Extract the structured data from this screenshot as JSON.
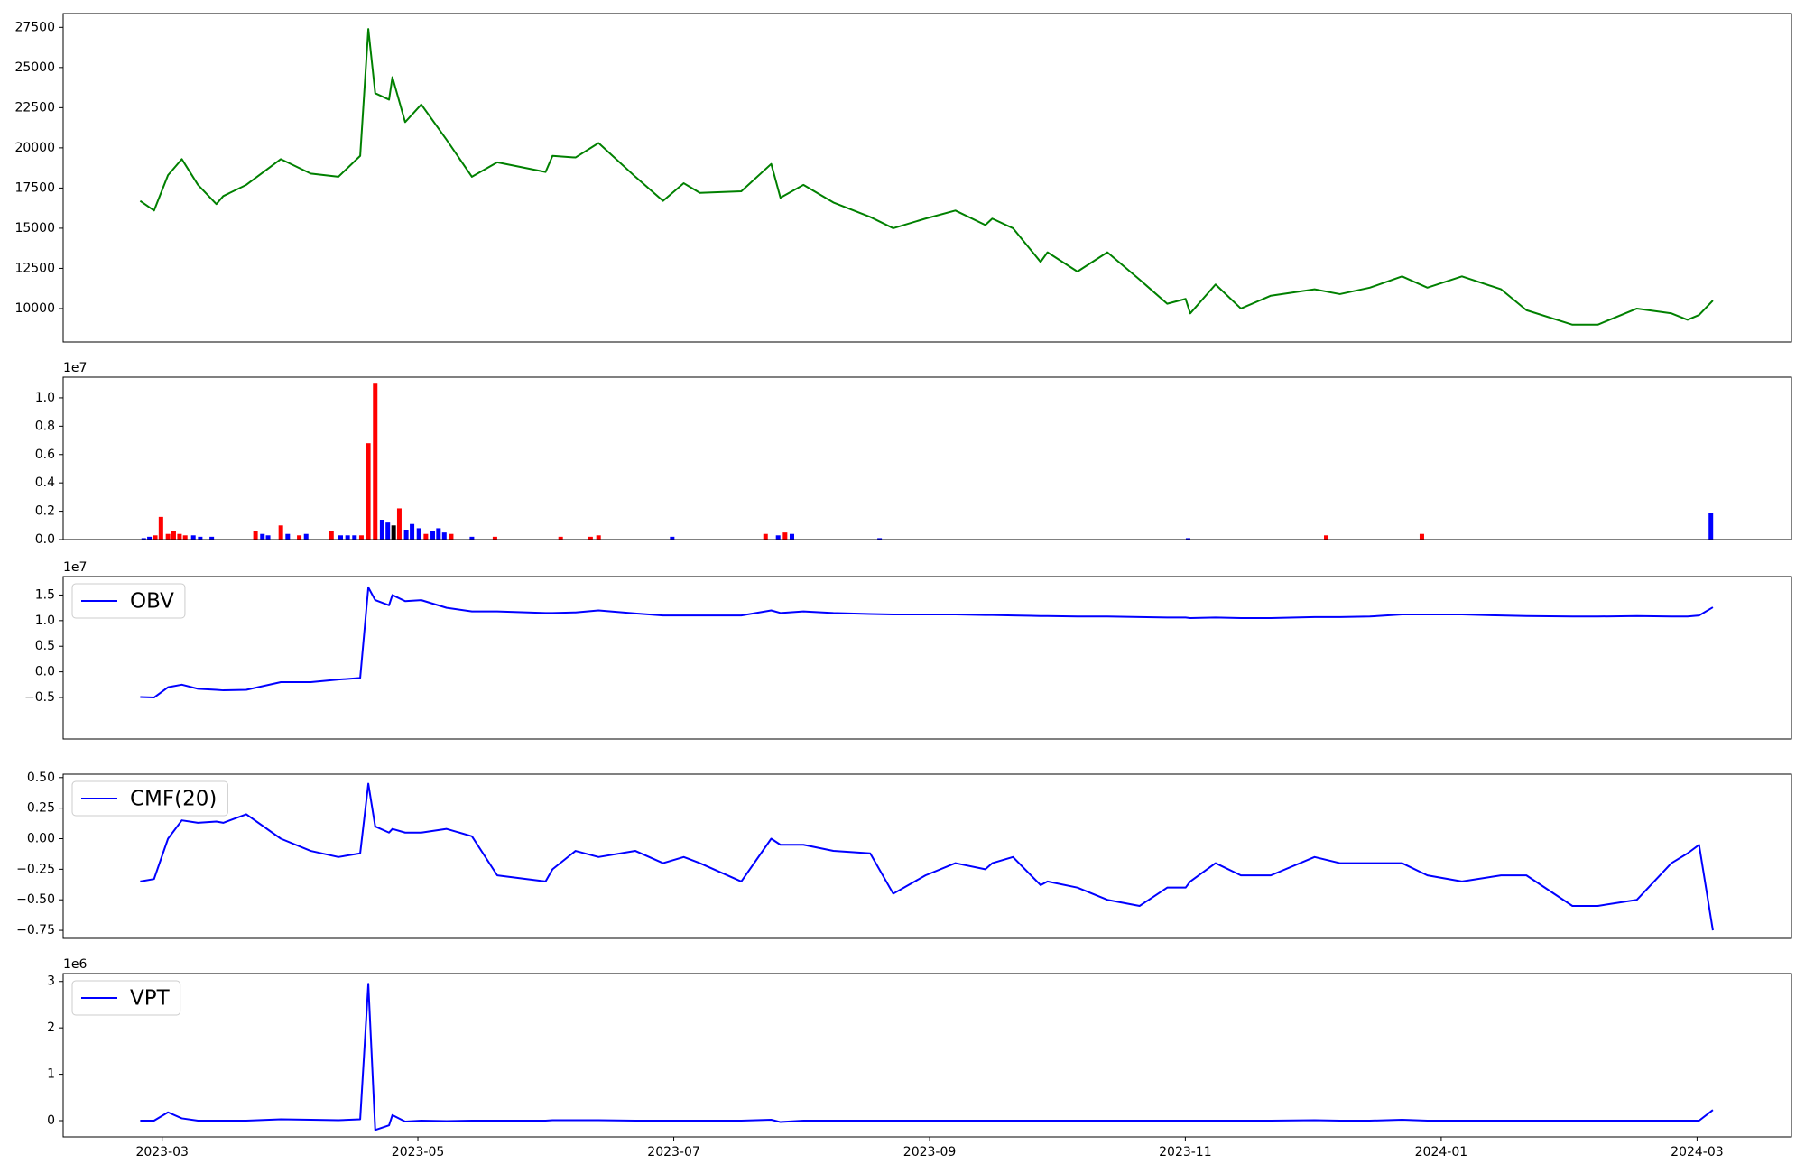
{
  "chart_data": [
    {
      "type": "line",
      "x": [
        2023.1524,
        2023.1614,
        2023.1705,
        2023.1795,
        2023.19,
        2023.202,
        2023.2065,
        2023.2215,
        2023.244,
        2023.2635,
        2023.2815,
        2023.2957,
        2023.301,
        2023.3055,
        2023.3145,
        2023.3167,
        2023.325,
        2023.3355,
        2023.352,
        2023.3685,
        2023.385,
        2023.4165,
        2023.421,
        2023.436,
        2023.451,
        2023.475,
        2023.493,
        2023.5065,
        2023.517,
        2023.544,
        2023.5635,
        2023.5695,
        2023.5845,
        2023.604,
        2023.628,
        2023.643,
        2023.664,
        2023.6835,
        2023.703,
        2023.7075,
        2023.721,
        2023.739,
        2023.7435,
        2023.763,
        2023.7825,
        2023.8035,
        2023.8215,
        2023.8335,
        2023.8365,
        2023.853,
        2023.8695,
        2023.889,
        2023.9175,
        2023.934,
        2023.9535,
        2023.9745,
        2023.991,
        2024.0135,
        2024.039,
        2024.0555,
        2024.0855,
        2024.102,
        2024.1275,
        2024.15,
        2024.1605,
        2024.168,
        2024.177
      ],
      "series": [
        {
          "color": "#008000",
          "values": [
            16700,
            16100,
            18300,
            19300,
            17700,
            16500,
            17000,
            17700,
            19300,
            18400,
            18200,
            19500,
            27400,
            23400,
            23000,
            24400,
            21600,
            22700,
            20500,
            18200,
            19100,
            18500,
            19500,
            19400,
            20300,
            18200,
            16700,
            17800,
            17200,
            17300,
            19000,
            16900,
            17700,
            16600,
            15700,
            15000,
            15600,
            16100,
            15200,
            15600,
            15000,
            12900,
            13500,
            12300,
            13500,
            11800,
            10300,
            10600,
            9700,
            11500,
            10000,
            10800,
            11200,
            10900,
            11300,
            12000,
            11300,
            12000,
            11200,
            9900,
            9000,
            9000,
            10000,
            9700,
            9300,
            9600,
            10500
          ]
        }
      ],
      "xlim": [
        2023.1022,
        2024.2282
      ],
      "ylim": [
        7920,
        28360
      ],
      "yticks": [
        10000,
        12500,
        15000,
        17500,
        20000,
        22500,
        25000,
        27500
      ]
    },
    {
      "type": "bar",
      "offset_label": "1e7",
      "x": [
        2023.1547,
        2023.1584,
        2023.1622,
        2023.1659,
        2023.1705,
        2023.1742,
        2023.178,
        2023.1817,
        2023.187,
        2023.1915,
        2023.199,
        2023.2275,
        2023.232,
        2023.2357,
        2023.244,
        2023.2485,
        2023.256,
        2023.2605,
        2023.277,
        2023.283,
        2023.2875,
        2023.292,
        2023.2965,
        2023.301,
        2023.3055,
        2023.31,
        2023.3137,
        2023.3175,
        2023.3212,
        2023.3257,
        2023.3295,
        2023.334,
        2023.3385,
        2023.343,
        2023.3467,
        2023.3505,
        2023.355,
        2023.3685,
        2023.3835,
        2023.4263,
        2023.4458,
        2023.451,
        2023.499,
        2023.5598,
        2023.568,
        2023.5725,
        2023.577,
        2023.6341,
        2023.8351,
        2023.9251,
        2023.9874,
        2024.1757
      ],
      "values": [
        100000,
        200000,
        300000,
        1600000,
        400000,
        600000,
        400000,
        300000,
        300000,
        200000,
        200000,
        600000,
        400000,
        300000,
        1000000,
        400000,
        300000,
        400000,
        600000,
        300000,
        300000,
        300000,
        300000,
        6800000,
        11000000,
        1400000,
        1200000,
        1000000,
        2200000,
        700000,
        1100000,
        800000,
        400000,
        600000,
        800000,
        500000,
        400000,
        200000,
        200000,
        200000,
        200000,
        300000,
        200000,
        400000,
        300000,
        500000,
        400000,
        100000,
        100000,
        300000,
        400000,
        1900000
      ],
      "colors": [
        "#0000ff",
        "#0000ff",
        "#ff0000",
        "#ff0000",
        "#ff0000",
        "#ff0000",
        "#ff0000",
        "#ff0000",
        "#0000ff",
        "#0000ff",
        "#0000ff",
        "#ff0000",
        "#0000ff",
        "#0000ff",
        "#ff0000",
        "#0000ff",
        "#ff0000",
        "#0000ff",
        "#ff0000",
        "#0000ff",
        "#0000ff",
        "#0000ff",
        "#ff0000",
        "#ff0000",
        "#ff0000",
        "#0000ff",
        "#0000ff",
        "#000000",
        "#ff0000",
        "#0000ff",
        "#0000ff",
        "#0000ff",
        "#ff0000",
        "#0000ff",
        "#0000ff",
        "#0000ff",
        "#ff0000",
        "#0000ff",
        "#ff0000",
        "#ff0000",
        "#ff0000",
        "#ff0000",
        "#0000ff",
        "#ff0000",
        "#0000ff",
        "#ff0000",
        "#0000ff",
        "#0000ff",
        "#0000ff",
        "#ff0000",
        "#ff0000",
        "#0000ff"
      ],
      "xlim": [
        2023.1022,
        2024.2282
      ],
      "ylim": [
        0,
        11460000
      ],
      "yticks": [
        {
          "value": 0,
          "label": "0.0"
        },
        {
          "value": 2000000,
          "label": "0.2"
        },
        {
          "value": 4000000,
          "label": "0.4"
        },
        {
          "value": 6000000,
          "label": "0.6"
        },
        {
          "value": 8000000,
          "label": "0.8"
        },
        {
          "value": 10000000,
          "label": "1.0"
        }
      ]
    },
    {
      "type": "line",
      "offset_label": "1e7",
      "legend": "upper left",
      "x": [
        2023.1524,
        2023.1614,
        2023.1705,
        2023.1795,
        2023.19,
        2023.202,
        2023.2065,
        2023.2215,
        2023.244,
        2023.2635,
        2023.2815,
        2023.2957,
        2023.301,
        2023.3055,
        2023.3145,
        2023.3167,
        2023.325,
        2023.3355,
        2023.352,
        2023.3685,
        2023.385,
        2023.4165,
        2023.421,
        2023.436,
        2023.451,
        2023.475,
        2023.493,
        2023.5065,
        2023.517,
        2023.544,
        2023.5635,
        2023.5695,
        2023.5845,
        2023.604,
        2023.628,
        2023.643,
        2023.664,
        2023.6835,
        2023.703,
        2023.7075,
        2023.721,
        2023.739,
        2023.7435,
        2023.763,
        2023.7825,
        2023.8035,
        2023.8215,
        2023.8335,
        2023.8365,
        2023.853,
        2023.8695,
        2023.889,
        2023.9175,
        2023.934,
        2023.9535,
        2023.9745,
        2023.991,
        2024.0135,
        2024.039,
        2024.0555,
        2024.0855,
        2024.102,
        2024.1275,
        2024.15,
        2024.1605,
        2024.168,
        2024.177
      ],
      "series": [
        {
          "name": "OBV",
          "color": "#0000ff",
          "values": [
            -4900000,
            -5000000,
            -3000000,
            -2500000,
            -3300000,
            -3500000,
            -3600000,
            -3500000,
            -2000000,
            -2000000,
            -1500000,
            -1200000,
            16500000,
            14000000,
            13000000,
            15000000,
            13800000,
            14000000,
            12500000,
            11800000,
            11800000,
            11500000,
            11500000,
            11600000,
            12000000,
            11400000,
            11000000,
            11000000,
            11000000,
            11000000,
            12000000,
            11500000,
            11800000,
            11500000,
            11300000,
            11200000,
            11200000,
            11200000,
            11100000,
            11100000,
            11000000,
            10900000,
            10900000,
            10800000,
            10800000,
            10700000,
            10600000,
            10600000,
            10500000,
            10600000,
            10500000,
            10500000,
            10700000,
            10700000,
            10800000,
            11200000,
            11200000,
            11200000,
            11000000,
            10900000,
            10800000,
            10800000,
            10900000,
            10800000,
            10800000,
            11000000,
            12600000
          ]
        }
      ],
      "xlim": [
        2023.1022,
        2024.2282
      ],
      "ylim": [
        -13100000,
        18600000
      ],
      "yticks": [
        {
          "value": -5000000,
          "label": "−0.5"
        },
        {
          "value": 0,
          "label": "0.0"
        },
        {
          "value": 5000000,
          "label": "0.5"
        },
        {
          "value": 10000000,
          "label": "1.0"
        },
        {
          "value": 15000000,
          "label": "1.5"
        }
      ]
    },
    {
      "type": "line",
      "legend": "upper left",
      "x": [
        2023.1524,
        2023.1614,
        2023.1705,
        2023.1795,
        2023.19,
        2023.202,
        2023.2065,
        2023.2215,
        2023.244,
        2023.2635,
        2023.2815,
        2023.2957,
        2023.301,
        2023.3055,
        2023.3145,
        2023.3167,
        2023.325,
        2023.3355,
        2023.352,
        2023.3685,
        2023.385,
        2023.4165,
        2023.421,
        2023.436,
        2023.451,
        2023.475,
        2023.493,
        2023.5065,
        2023.517,
        2023.544,
        2023.5635,
        2023.5695,
        2023.5845,
        2023.604,
        2023.628,
        2023.643,
        2023.664,
        2023.6835,
        2023.703,
        2023.7075,
        2023.721,
        2023.739,
        2023.7435,
        2023.763,
        2023.7825,
        2023.8035,
        2023.8215,
        2023.8335,
        2023.8365,
        2023.853,
        2023.8695,
        2023.889,
        2023.9175,
        2023.934,
        2023.9535,
        2023.9745,
        2023.991,
        2024.0135,
        2024.039,
        2024.0555,
        2024.0855,
        2024.102,
        2024.1275,
        2024.15,
        2024.1605,
        2024.168,
        2024.177
      ],
      "series": [
        {
          "name": "CMF(20)",
          "color": "#0000ff",
          "values": [
            -0.35,
            -0.33,
            0,
            0.15,
            0.13,
            0.14,
            0.13,
            0.2,
            0,
            -0.1,
            -0.15,
            -0.12,
            0.45,
            0.1,
            0.05,
            0.08,
            0.05,
            0.05,
            0.08,
            0.02,
            -0.3,
            -0.35,
            -0.25,
            -0.1,
            -0.15,
            -0.1,
            -0.2,
            -0.15,
            -0.2,
            -0.35,
            0,
            -0.05,
            -0.05,
            -0.1,
            -0.12,
            -0.45,
            -0.3,
            -0.2,
            -0.25,
            -0.2,
            -0.15,
            -0.38,
            -0.35,
            -0.4,
            -0.5,
            -0.55,
            -0.4,
            -0.4,
            -0.35,
            -0.2,
            -0.3,
            -0.3,
            -0.15,
            -0.2,
            -0.2,
            -0.2,
            -0.3,
            -0.35,
            -0.3,
            -0.3,
            -0.55,
            -0.55,
            -0.5,
            -0.2,
            -0.12,
            -0.05,
            -0.75
          ]
        }
      ],
      "xlim": [
        2023.1022,
        2024.2282
      ],
      "ylim": [
        -0.816,
        0.528
      ],
      "yticks": [
        {
          "value": -0.75,
          "label": "−0.75"
        },
        {
          "value": -0.5,
          "label": "−0.50"
        },
        {
          "value": -0.25,
          "label": "−0.25"
        },
        {
          "value": 0,
          "label": "0.00"
        },
        {
          "value": 0.25,
          "label": "0.25"
        },
        {
          "value": 0.5,
          "label": "0.50"
        }
      ]
    },
    {
      "type": "line",
      "offset_label": "1e6",
      "legend": "upper left",
      "x": [
        2023.1524,
        2023.1614,
        2023.1705,
        2023.1795,
        2023.19,
        2023.202,
        2023.2065,
        2023.2215,
        2023.244,
        2023.2635,
        2023.2815,
        2023.2957,
        2023.301,
        2023.3055,
        2023.3145,
        2023.3167,
        2023.325,
        2023.3355,
        2023.352,
        2023.3685,
        2023.385,
        2023.4165,
        2023.421,
        2023.436,
        2023.451,
        2023.475,
        2023.493,
        2023.5065,
        2023.517,
        2023.544,
        2023.5635,
        2023.5695,
        2023.5845,
        2023.604,
        2023.628,
        2023.643,
        2023.664,
        2023.6835,
        2023.703,
        2023.7075,
        2023.721,
        2023.739,
        2023.7435,
        2023.763,
        2023.7825,
        2023.8035,
        2023.8215,
        2023.8335,
        2023.8365,
        2023.853,
        2023.8695,
        2023.889,
        2023.9175,
        2023.934,
        2023.9535,
        2023.9745,
        2023.991,
        2024.0135,
        2024.039,
        2024.0555,
        2024.0855,
        2024.102,
        2024.1275,
        2024.15,
        2024.1605,
        2024.168,
        2024.177
      ],
      "series": [
        {
          "name": "VPT",
          "color": "#0000ff",
          "values": [
            0,
            0,
            180000,
            50000,
            0,
            0,
            0,
            0,
            30000,
            20000,
            10000,
            30000,
            2950000,
            -200000,
            -100000,
            120000,
            -20000,
            0,
            -10000,
            0,
            0,
            0,
            10000,
            10000,
            10000,
            0,
            0,
            0,
            0,
            0,
            20000,
            -30000,
            0,
            0,
            0,
            0,
            0,
            0,
            0,
            0,
            0,
            0,
            0,
            0,
            0,
            0,
            0,
            0,
            0,
            0,
            0,
            0,
            10000,
            0,
            0,
            20000,
            0,
            0,
            0,
            0,
            0,
            0,
            0,
            0,
            0,
            0,
            230000
          ]
        }
      ],
      "xlim": [
        2023.1022,
        2024.2282
      ],
      "ylim": [
        -350000,
        3170000
      ],
      "yticks": [
        {
          "value": 0,
          "label": "0"
        },
        {
          "value": 1000000,
          "label": "1"
        },
        {
          "value": 2000000,
          "label": "2"
        },
        {
          "value": 3000000,
          "label": "3"
        }
      ],
      "xticks": [
        {
          "value": 2023.1667,
          "label": "2023-03"
        },
        {
          "value": 2023.3333,
          "label": "2023-05"
        },
        {
          "value": 2023.5,
          "label": "2023-07"
        },
        {
          "value": 2023.6667,
          "label": "2023-09"
        },
        {
          "value": 2023.8333,
          "label": "2023-11"
        },
        {
          "value": 2024.0,
          "label": "2024-01"
        },
        {
          "value": 2024.1667,
          "label": "2024-03"
        }
      ]
    }
  ]
}
